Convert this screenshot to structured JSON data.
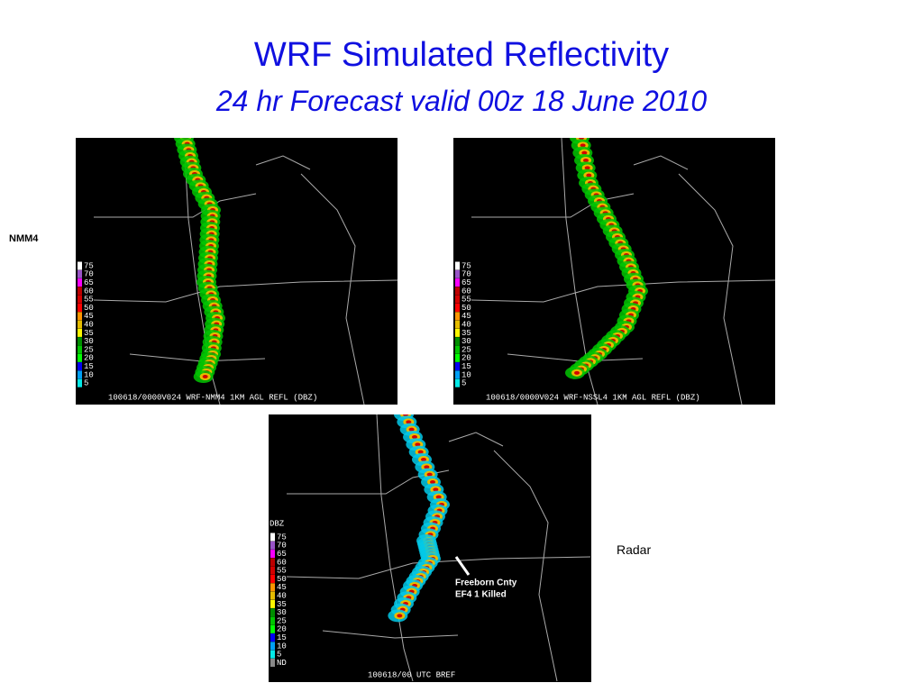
{
  "title": "WRF Simulated Reflectivity",
  "subtitle": "24 hr Forecast valid 00z 18 June 2010",
  "labels": {
    "nmm4": "NMM4",
    "radar": "Radar"
  },
  "panels": [
    {
      "caption": "100618/0000V024 WRF-NMM4 1KM AGL REFL (DBZ)",
      "legend": [
        "75",
        "70",
        "65",
        "60",
        "55",
        "50",
        "45",
        "40",
        "35",
        "30",
        "25",
        "20",
        "15",
        "10",
        "5"
      ]
    },
    {
      "caption": "100618/0000V024 WRF-NSSL4 1KM AGL REFL (DBZ)",
      "legend": [
        "75",
        "70",
        "65",
        "60",
        "55",
        "50",
        "45",
        "40",
        "35",
        "30",
        "25",
        "20",
        "15",
        "10",
        "5"
      ]
    },
    {
      "legend_title": "DBZ",
      "caption": "100618/00 UTC BREF",
      "legend": [
        "75",
        "70",
        "65",
        "60",
        "55",
        "50",
        "45",
        "40",
        "35",
        "30",
        "25",
        "20",
        "15",
        "10",
        "5",
        "ND"
      ],
      "annotation": [
        "Freeborn Cnty",
        "EF4  1 Killed"
      ]
    }
  ]
}
